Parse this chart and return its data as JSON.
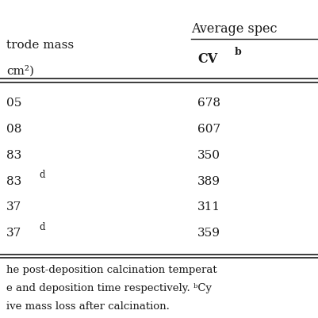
{
  "header_top": "Average spec",
  "col1_header_line1": "trode mass",
  "col1_header_line2": "cm²)",
  "col2_header_main": "CV",
  "col2_header_super": "b",
  "rows": [
    {
      "col1": "05",
      "col1_super": "",
      "col2": "678"
    },
    {
      "col1": "08",
      "col1_super": "",
      "col2": "607"
    },
    {
      "col1": "83",
      "col1_super": "",
      "col2": "350"
    },
    {
      "col1": "83",
      "col1_super": "d",
      "col2": "389"
    },
    {
      "col1": "37",
      "col1_super": "",
      "col2": "311"
    },
    {
      "col1": "37",
      "col1_super": "d",
      "col2": "359"
    }
  ],
  "footnote_lines": [
    "he post-deposition calcination temperat",
    "e and deposition time respectively. ᵇCy",
    "ive mass loss after calcination."
  ],
  "bg_color": "#ffffff",
  "text_color": "#1a1a1a",
  "font_size": 11,
  "footnote_font_size": 9.5
}
